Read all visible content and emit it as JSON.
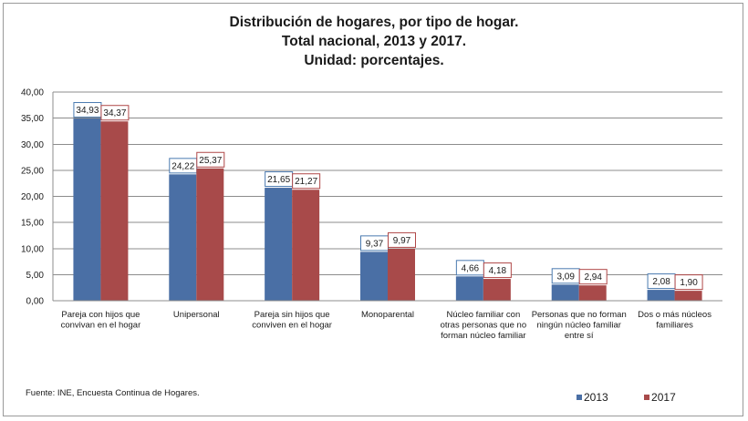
{
  "title_lines": [
    "Distribución de hogares, por tipo de hogar.",
    "Total nacional, 2013 y 2017.",
    "Unidad: porcentajes."
  ],
  "source": "Fuente: INE, Encuesta Continua de Hogares.",
  "colors": {
    "series_2013": "#4a6fa5",
    "series_2017": "#a84a4a",
    "grid": "#8c8c8c",
    "label_border_2013": "#4a7ab0",
    "label_border_2017": "#b04848"
  },
  "chart_data": {
    "type": "bar",
    "title": "Distribución de hogares, por tipo de hogar. Total nacional, 2013 y 2017. Unidad: porcentajes.",
    "categories": [
      [
        "Pareja con hijos que",
        "convivan en el hogar"
      ],
      [
        "Unipersonal"
      ],
      [
        "Pareja sin hijos que",
        "conviven en el hogar"
      ],
      [
        "Monoparental"
      ],
      [
        "Núcleo familiar con",
        "otras personas que no",
        "forman núcleo familiar"
      ],
      [
        "Personas que no forman",
        "ningún núcleo familiar",
        "entre sí"
      ],
      [
        "Dos o más núcleos",
        "familiares"
      ]
    ],
    "series": [
      {
        "name": "2013",
        "values": [
          34.93,
          24.22,
          21.65,
          9.37,
          4.66,
          3.09,
          2.08
        ],
        "labels": [
          "34,93",
          "24,22",
          "21,65",
          "9,37",
          "4,66",
          "3,09",
          "2,08"
        ]
      },
      {
        "name": "2017",
        "values": [
          34.37,
          25.37,
          21.27,
          9.97,
          4.18,
          2.94,
          1.9
        ],
        "labels": [
          "34,37",
          "25,37",
          "21,27",
          "9,97",
          "4,18",
          "2,94",
          "1,90"
        ]
      }
    ],
    "ylim": [
      0,
      40
    ],
    "y_ticks": [
      0,
      5,
      10,
      15,
      20,
      25,
      30,
      35,
      40
    ],
    "y_tick_labels": [
      "0,00",
      "5,00",
      "10,00",
      "15,00",
      "20,00",
      "25,00",
      "30,00",
      "35,00",
      "40,00"
    ],
    "xlabel": "",
    "ylabel": "",
    "grid": true,
    "legend_position": "bottom-right"
  }
}
